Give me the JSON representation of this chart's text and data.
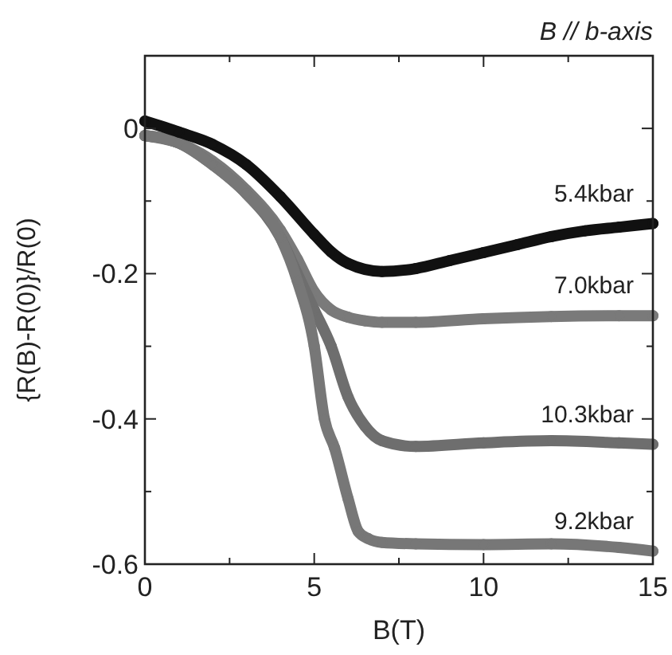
{
  "chart_data": {
    "type": "line",
    "title": "B // b-axis",
    "xlabel": "B(T)",
    "ylabel": "{R(B)-R(0)}/R(0)",
    "marker": "circle",
    "grid": false,
    "xlim": [
      0,
      15
    ],
    "xticks": [
      0,
      {
        "value": 2.5,
        "label": null
      },
      5,
      {
        "value": 7.5,
        "label": null
      },
      10,
      {
        "value": 12.5,
        "label": null
      },
      15
    ],
    "ylim": [
      -0.6,
      0.1
    ],
    "yticks": [
      -0.6,
      {
        "value": -0.5,
        "label": null
      },
      -0.4,
      {
        "value": -0.3,
        "label": null
      },
      -0.2,
      {
        "value": -0.1,
        "label": null
      },
      0
    ],
    "series": [
      {
        "name": "7.0kbar",
        "color": "#7a7a7a",
        "x": [
          0,
          1,
          2,
          3,
          4,
          4.5,
          5,
          5.5,
          6,
          6.5,
          7,
          8,
          10,
          12,
          14,
          15
        ],
        "values": [
          -0.01,
          -0.02,
          -0.045,
          -0.085,
          -0.14,
          -0.18,
          -0.225,
          -0.25,
          -0.26,
          -0.265,
          -0.267,
          -0.267,
          -0.262,
          -0.259,
          -0.258,
          -0.258
        ]
      },
      {
        "name": "10.3kbar",
        "color": "#6e6e6e",
        "x": [
          0,
          1,
          2,
          3,
          4,
          4.5,
          5,
          5.5,
          6,
          6.5,
          7,
          8,
          10,
          12,
          14,
          15
        ],
        "values": [
          -0.01,
          -0.02,
          -0.05,
          -0.09,
          -0.15,
          -0.2,
          -0.25,
          -0.3,
          -0.37,
          -0.41,
          -0.43,
          -0.438,
          -0.433,
          -0.43,
          -0.433,
          -0.435
        ]
      },
      {
        "name": "9.2kbar",
        "color": "#777777",
        "x": [
          0,
          1,
          2,
          3,
          4,
          4.5,
          5,
          5.3,
          5.6,
          6,
          6.3,
          6.6,
          7,
          8,
          10,
          12,
          14,
          15
        ],
        "values": [
          -0.01,
          -0.02,
          -0.05,
          -0.09,
          -0.15,
          -0.21,
          -0.3,
          -0.4,
          -0.44,
          -0.51,
          -0.555,
          -0.565,
          -0.57,
          -0.572,
          -0.573,
          -0.572,
          -0.577,
          -0.582
        ]
      },
      {
        "name": "5.4kbar",
        "color": "#111111",
        "x": [
          0,
          1,
          2,
          3,
          4,
          5,
          5.5,
          6,
          7,
          8,
          9,
          10,
          11,
          12,
          13,
          14,
          15
        ],
        "values": [
          0.01,
          -0.005,
          -0.022,
          -0.05,
          -0.094,
          -0.146,
          -0.17,
          -0.186,
          -0.197,
          -0.193,
          -0.182,
          -0.171,
          -0.16,
          -0.149,
          -0.141,
          -0.136,
          -0.131
        ]
      }
    ]
  }
}
